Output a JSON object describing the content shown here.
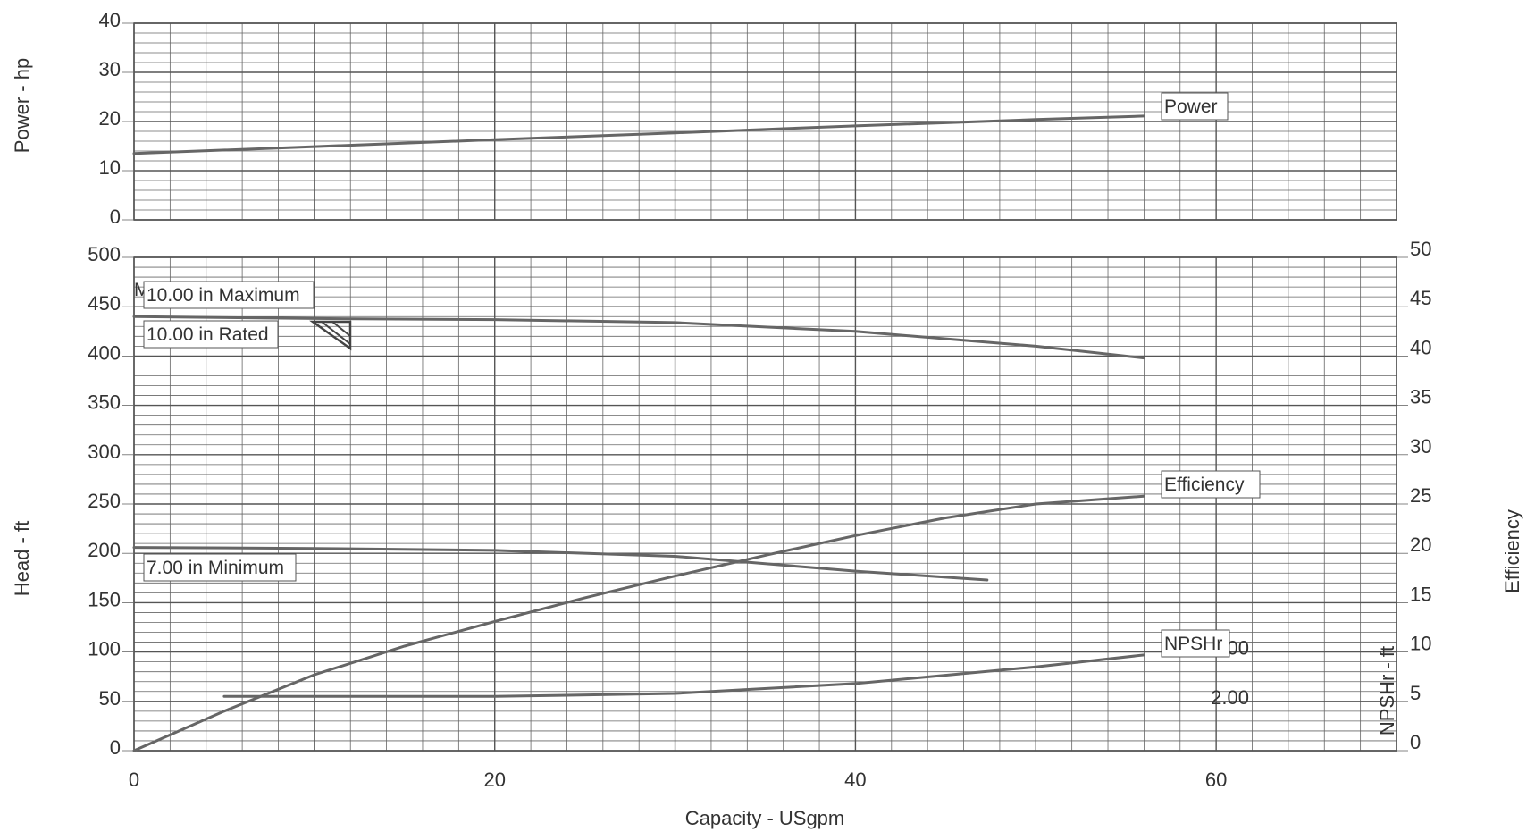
{
  "chart_data": [
    {
      "type": "line",
      "panel": "power",
      "xlabel": "",
      "ylabel": "Power - hp",
      "xlim": [
        0,
        70
      ],
      "ylim": [
        0,
        40
      ],
      "y_ticks": [
        "0",
        "10",
        "20",
        "30",
        "40"
      ],
      "grid": true,
      "series": [
        {
          "name": "Power",
          "x": [
            0,
            10,
            20,
            30,
            40,
            50,
            56
          ],
          "y": [
            13.5,
            14.9,
            16.3,
            17.7,
            19.1,
            20.4,
            21.1
          ]
        }
      ]
    },
    {
      "type": "line",
      "panel": "head",
      "xlabel": "Capacity - USgpm",
      "ylabel": "Head - ft",
      "y2label": "Efficiency",
      "y3label": "NPSHr - ft",
      "xlim": [
        0,
        70
      ],
      "ylim": [
        0,
        500
      ],
      "y2lim": [
        0,
        50
      ],
      "x_ticks": [
        "0",
        "20",
        "40",
        "60"
      ],
      "y_ticks": [
        "0",
        "50",
        "100",
        "150",
        "200",
        "250",
        "300",
        "350",
        "400",
        "450",
        "500"
      ],
      "y2_ticks": [
        "0",
        "5",
        "10",
        "15",
        "20",
        "25",
        "30",
        "35",
        "40",
        "45",
        "50"
      ],
      "npshr_ticks": [
        "2.00",
        "4.00"
      ],
      "grid": true,
      "series": [
        {
          "name": "10.00 in Maximum",
          "x": [
            0,
            10,
            20,
            30,
            40,
            50,
            56
          ],
          "y": [
            440,
            438,
            437,
            434,
            425,
            410,
            398
          ]
        },
        {
          "name": "10.00 in Rated",
          "x": [
            0,
            10,
            20,
            30,
            40,
            50,
            56
          ],
          "y": [
            440,
            438,
            437,
            434,
            425,
            410,
            398
          ]
        },
        {
          "name": "7.00 in Minimum",
          "x": [
            0,
            10,
            20,
            30,
            40,
            47.3
          ],
          "y": [
            206,
            205,
            203,
            197,
            182,
            173
          ]
        },
        {
          "name": "Efficiency",
          "axis": "y2",
          "x": [
            0,
            5,
            10,
            15,
            20,
            25,
            30,
            35,
            40,
            45,
            50,
            56
          ],
          "y": [
            0,
            4,
            7.7,
            10.6,
            13.1,
            15.5,
            17.7,
            19.8,
            21.8,
            23.6,
            25,
            25.8
          ]
        },
        {
          "name": "NPSHr",
          "x": [
            5,
            10,
            20,
            30,
            40,
            50,
            56
          ],
          "y": [
            55,
            55,
            55,
            58,
            68,
            85,
            97
          ]
        }
      ],
      "annotations": [
        "MCSF",
        "10.00 in Maximum",
        "10.00 in Rated",
        "7.00 in Minimum",
        "Power",
        "Efficiency",
        "NPSHr"
      ]
    }
  ]
}
